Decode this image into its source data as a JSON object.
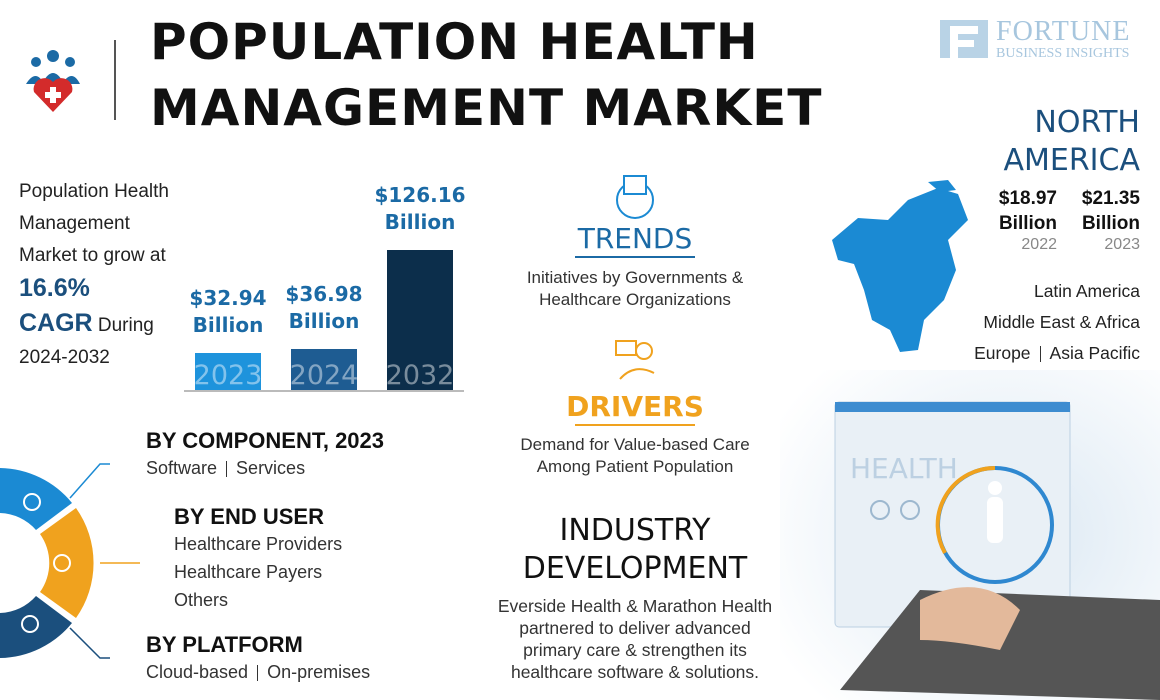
{
  "header": {
    "title_line1": "POPULATION HEALTH",
    "title_line2": "MANAGEMENT MARKET",
    "brand": "FORTUNE",
    "brand_sub": "BUSINESS INSIGHTS"
  },
  "growth": {
    "text1": "Population Health Management Market to grow at",
    "rate": "16.6%",
    "cagr": "CAGR",
    "text2": "During",
    "period": "2024-2032"
  },
  "chart_data": {
    "type": "bar",
    "categories": [
      "2023",
      "2024",
      "2032"
    ],
    "values": [
      32.94,
      36.98,
      126.16
    ],
    "value_labels": [
      "$32.94 Billion",
      "$36.98 Billion",
      "$126.16 Billion"
    ],
    "colors": [
      "#1e93dc",
      "#1e5c92",
      "#0c2e4b"
    ],
    "label_color": "#1b6aa5"
  },
  "region": {
    "name": "NORTH AMERICA",
    "stats": [
      {
        "value": "$18.97 Billion",
        "year": "2022"
      },
      {
        "value": "$21.35 Billion",
        "year": "2023"
      }
    ],
    "others": [
      [
        "Latin America"
      ],
      [
        "Middle East & Africa"
      ],
      [
        "Europe",
        "Asia Pacific"
      ]
    ]
  },
  "trends": {
    "title": "TRENDS",
    "text": "Initiatives by Governments & Healthcare Organizations"
  },
  "drivers": {
    "title": "DRIVERS",
    "text": "Demand for Value-based Care Among Patient Population"
  },
  "industry": {
    "title": "INDUSTRY DEVELOPMENT",
    "text": "Everside Health & Marathon Health partnered to deliver advanced primary care & strengthen its healthcare software & solutions."
  },
  "segments": [
    {
      "title": "BY COMPONENT, 2023",
      "items": [
        "Software",
        "Services"
      ]
    },
    {
      "title": "BY END USER",
      "items": [
        "Healthcare Providers",
        "Healthcare Payers",
        "Others"
      ]
    },
    {
      "title": "BY PLATFORM",
      "items": [
        "Cloud-based",
        "On-premises"
      ]
    }
  ],
  "illustration": {
    "screen_text": "HEALTH"
  }
}
